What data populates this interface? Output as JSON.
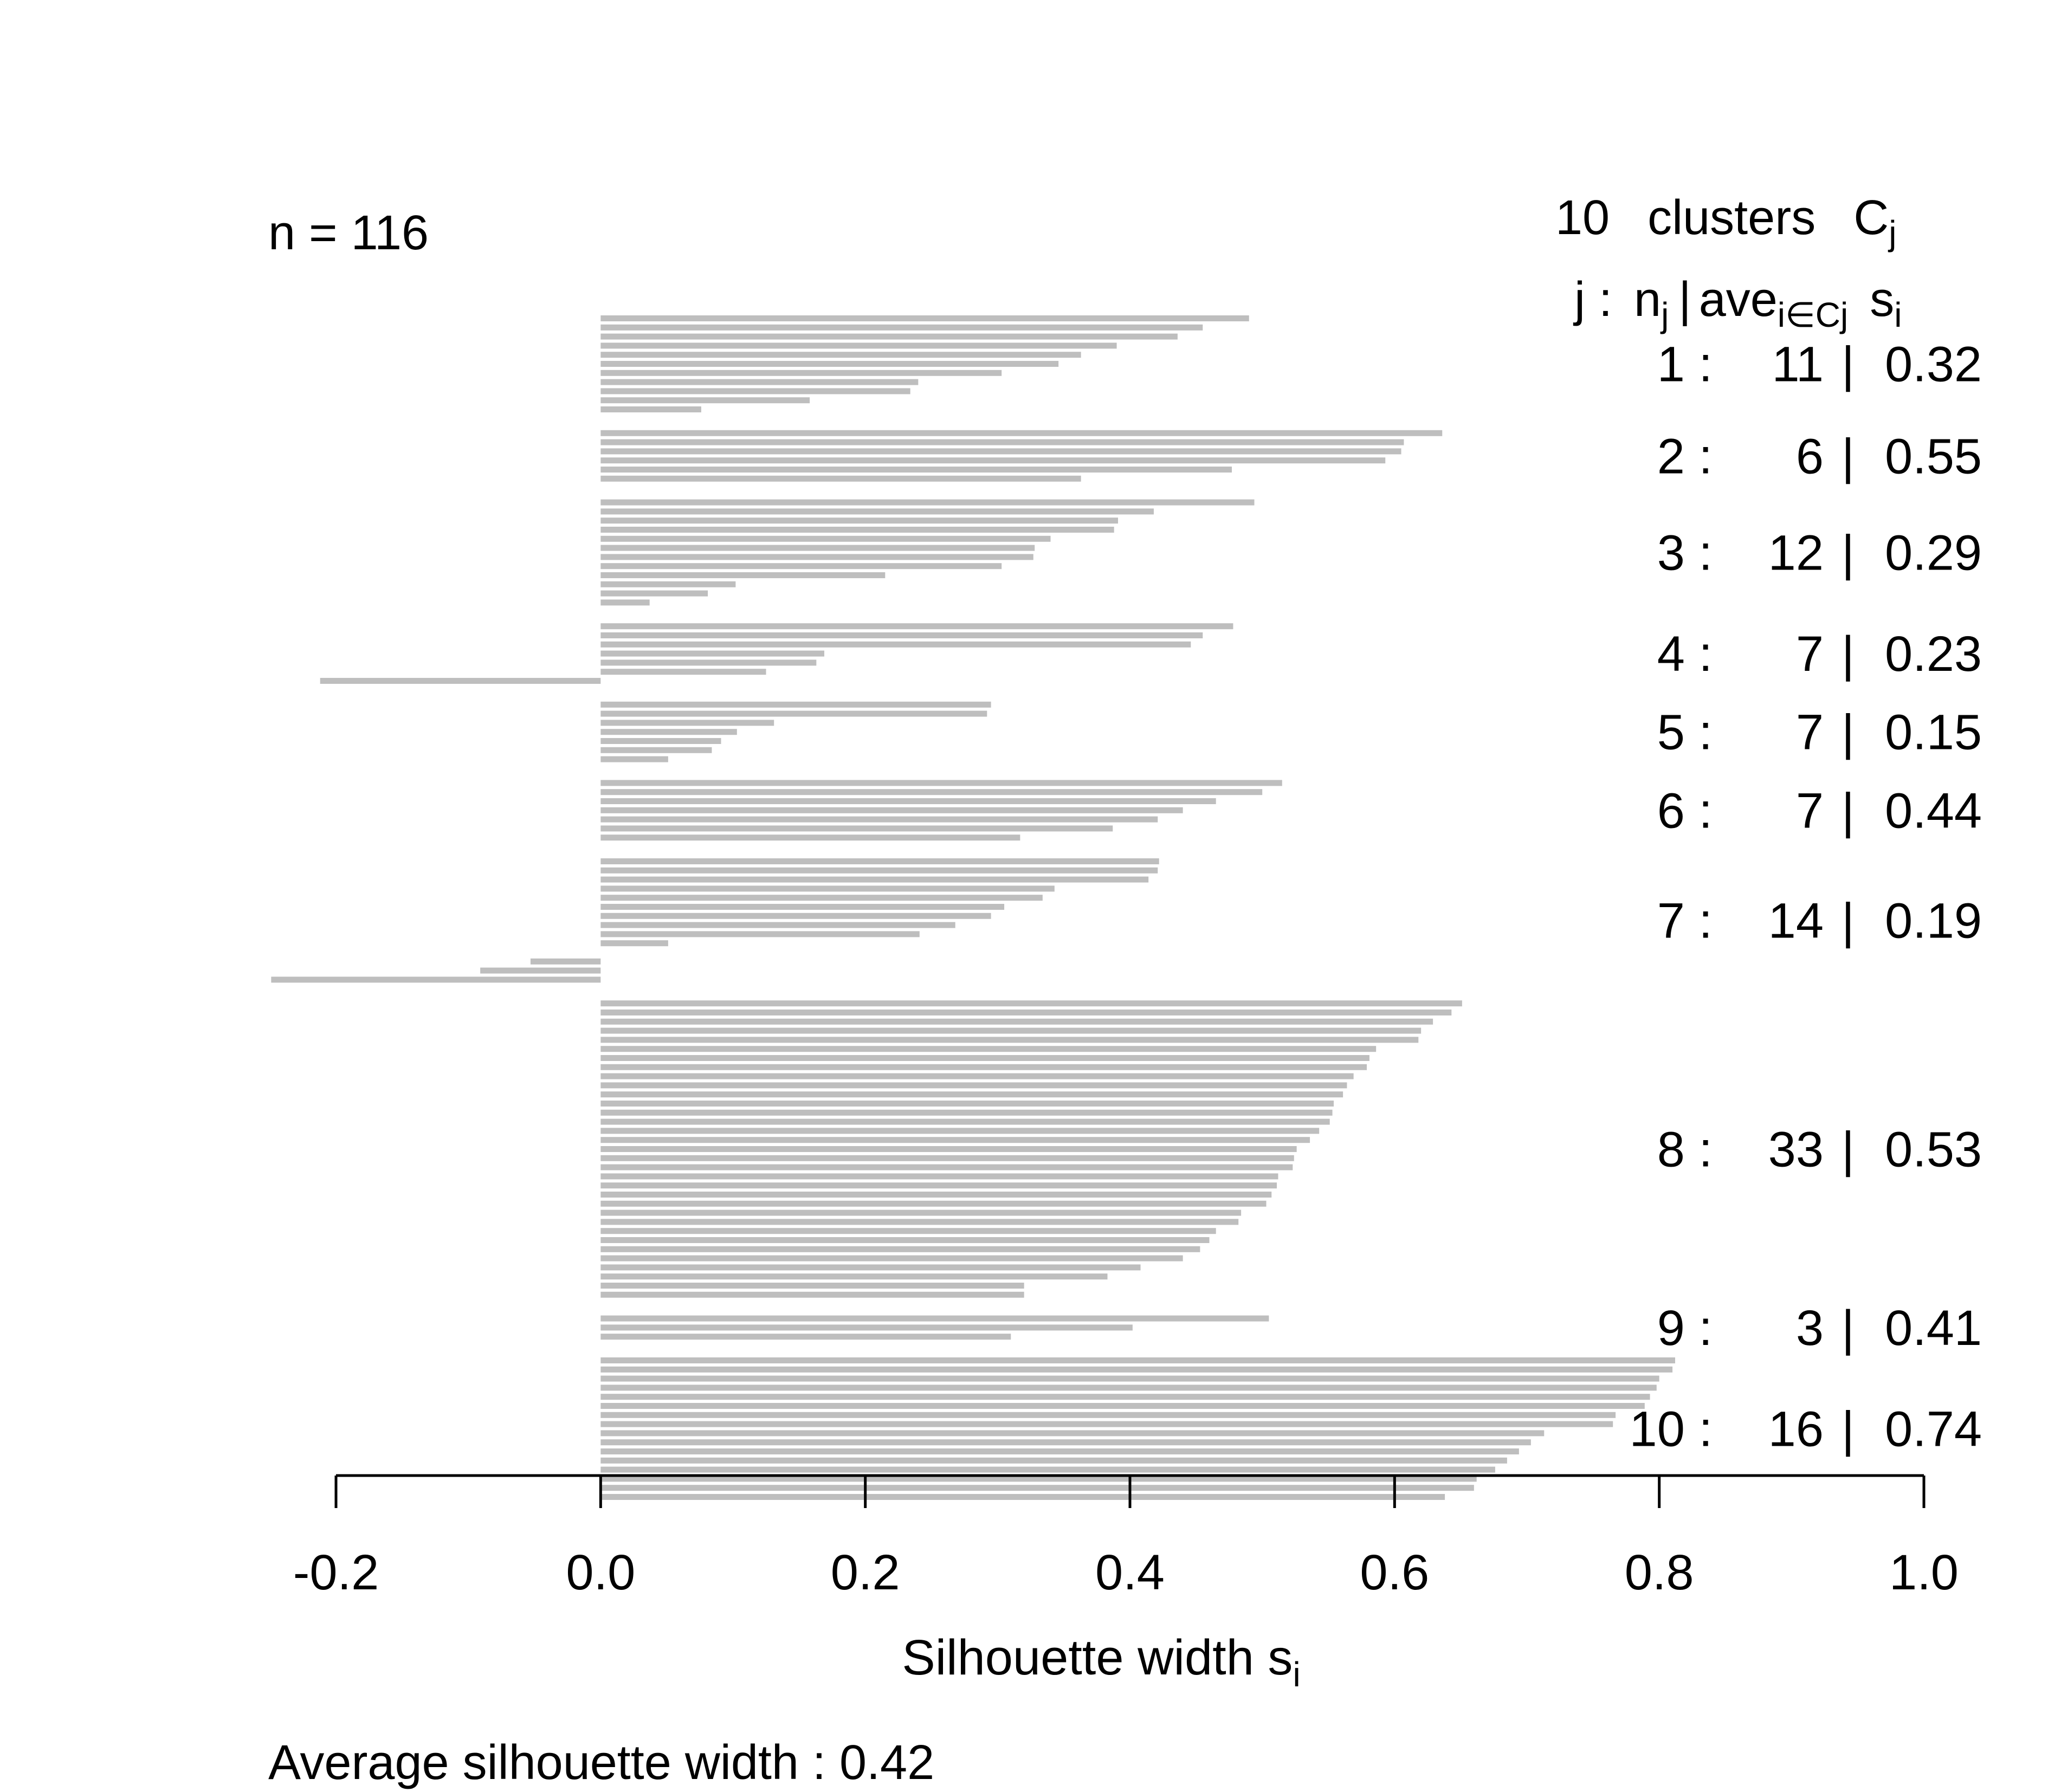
{
  "chart_data": {
    "type": "bar",
    "orientation": "horizontal",
    "n_label": "n = 116",
    "header": {
      "k": "10",
      "clusters_text": "clusters",
      "c_sym": "C",
      "c_sub": "j",
      "j_text": "j :",
      "n_sym": "n",
      "n_sub": "j",
      "sep": "|",
      "ave_text": "ave",
      "ave_sub": "i∈Cj",
      "s_sym": "s",
      "s_sub": "i"
    },
    "xlabel": "Silhouette width s",
    "xlabel_sub": "i",
    "footer": "Average silhouette width :  0.42",
    "xlim": [
      -0.2,
      1.0
    ],
    "xticks": [
      "-0.2",
      "0.0",
      "0.2",
      "0.4",
      "0.6",
      "0.8",
      "1.0"
    ],
    "bar_color": "#bebebe",
    "clusters": [
      {
        "label": "1 :",
        "size": "11",
        "sep": "|",
        "avg": "0.32",
        "values": [
          0.49,
          0.455,
          0.436,
          0.39,
          0.363,
          0.346,
          0.303,
          0.24,
          0.234,
          0.158,
          0.076
        ]
      },
      {
        "label": "2 :",
        "size": "6",
        "sep": "|",
        "avg": "0.55",
        "values": [
          0.636,
          0.607,
          0.605,
          0.593,
          0.477,
          0.363
        ]
      },
      {
        "label": "3 :",
        "size": "12",
        "sep": "|",
        "avg": "0.29",
        "values": [
          0.494,
          0.418,
          0.391,
          0.388,
          0.34,
          0.328,
          0.327,
          0.303,
          0.215,
          0.102,
          0.081,
          0.037
        ]
      },
      {
        "label": "4 :",
        "size": "7",
        "sep": "|",
        "avg": "0.23",
        "values": [
          0.478,
          0.455,
          0.446,
          0.169,
          0.163,
          0.125,
          -0.212
        ]
      },
      {
        "label": "5 :",
        "size": "7",
        "sep": "|",
        "avg": "0.15",
        "values": [
          0.295,
          0.292,
          0.131,
          0.103,
          0.091,
          0.084,
          0.051
        ]
      },
      {
        "label": "6 :",
        "size": "7",
        "sep": "|",
        "avg": "0.44",
        "values": [
          0.515,
          0.5,
          0.465,
          0.44,
          0.421,
          0.387,
          0.317
        ]
      },
      {
        "label": "7 :",
        "size": "14",
        "sep": "|",
        "avg": "0.19",
        "values": [
          0.422,
          0.421,
          0.414,
          0.343,
          0.334,
          0.305,
          0.295,
          0.268,
          0.241,
          0.051,
          0.0,
          -0.053,
          -0.091,
          -0.249
        ]
      },
      {
        "label": "8 :",
        "size": "33",
        "sep": "|",
        "avg": "0.53",
        "values": [
          0.651,
          0.643,
          0.629,
          0.62,
          0.618,
          0.586,
          0.581,
          0.579,
          0.569,
          0.564,
          0.561,
          0.554,
          0.553,
          0.551,
          0.543,
          0.536,
          0.526,
          0.524,
          0.523,
          0.512,
          0.511,
          0.507,
          0.503,
          0.484,
          0.482,
          0.465,
          0.46,
          0.453,
          0.44,
          0.408,
          0.383,
          0.32,
          0.32
        ]
      },
      {
        "label": "9 :",
        "size": "3",
        "sep": "|",
        "avg": "0.41",
        "values": [
          0.505,
          0.402,
          0.31
        ]
      },
      {
        "label": "10 :",
        "size": "16",
        "sep": "|",
        "avg": "0.74",
        "values": [
          0.812,
          0.81,
          0.8,
          0.798,
          0.793,
          0.789,
          0.767,
          0.765,
          0.713,
          0.703,
          0.694,
          0.685,
          0.676,
          0.662,
          0.66,
          0.638
        ]
      }
    ]
  }
}
